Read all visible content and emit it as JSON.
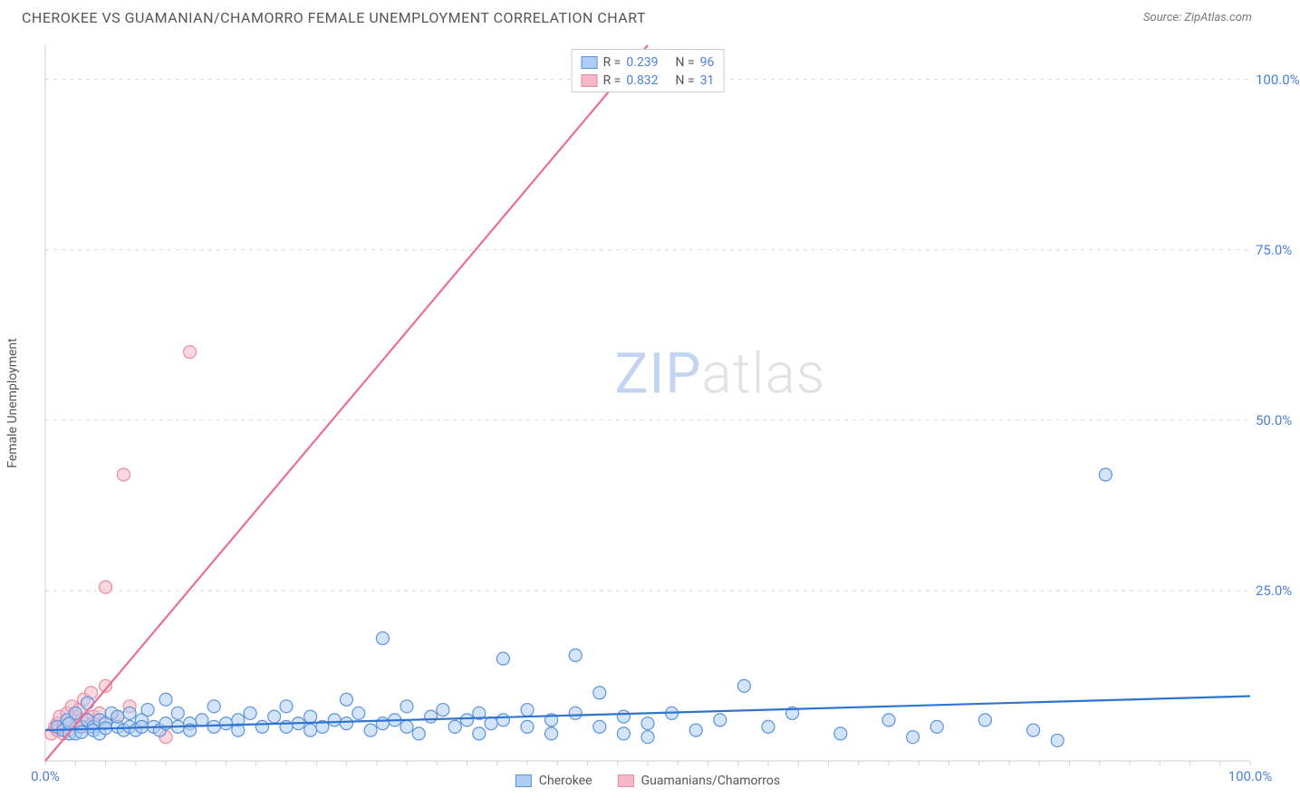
{
  "header": {
    "title": "CHEROKEE VS GUAMANIAN/CHAMORRO FEMALE UNEMPLOYMENT CORRELATION CHART",
    "source": "Source: ZipAtlas.com"
  },
  "watermark": {
    "zip": "ZIP",
    "atlas": "atlas"
  },
  "chart": {
    "type": "scatter",
    "ylabel": "Female Unemployment",
    "xlim": [
      0,
      100
    ],
    "ylim": [
      0,
      105
    ],
    "yticks": [
      25.0,
      50.0,
      75.0,
      100.0
    ],
    "ytick_labels": [
      "25.0%",
      "50.0%",
      "75.0%",
      "100.0%"
    ],
    "xtick_labels": {
      "min": "0.0%",
      "max": "100.0%"
    },
    "background_color": "#ffffff",
    "grid_color": "#d8d8d8",
    "axis_color": "#d0d0d0",
    "marker_radius": 7,
    "marker_stroke_width": 1.2,
    "trend_line_width": 2.2,
    "series": [
      {
        "name": "Cherokee",
        "fill": "#aecdf4",
        "stroke": "#5c93d8",
        "fill_opacity": 0.55,
        "trend_color": "#2f74d0",
        "trend": {
          "x1": 0,
          "y1": 4.5,
          "x2": 100,
          "y2": 9.5
        },
        "r_label": "R =",
        "r_value": "0.239",
        "n_label": "N =",
        "n_value": "96",
        "points": [
          [
            1,
            5
          ],
          [
            1.5,
            4.5
          ],
          [
            1.8,
            6
          ],
          [
            2,
            4
          ],
          [
            2,
            5.5
          ],
          [
            2.5,
            7
          ],
          [
            2.5,
            4
          ],
          [
            3,
            5
          ],
          [
            3,
            4.2
          ],
          [
            3.5,
            6
          ],
          [
            3.5,
            8.5
          ],
          [
            4,
            5
          ],
          [
            4,
            4.5
          ],
          [
            4.5,
            6
          ],
          [
            4.5,
            4
          ],
          [
            5,
            5.5
          ],
          [
            5,
            4.8
          ],
          [
            5.5,
            7
          ],
          [
            6,
            5
          ],
          [
            6,
            6.5
          ],
          [
            6.5,
            4.5
          ],
          [
            7,
            5
          ],
          [
            7,
            7
          ],
          [
            7.5,
            4.5
          ],
          [
            8,
            6
          ],
          [
            8,
            5
          ],
          [
            8.5,
            7.5
          ],
          [
            9,
            5
          ],
          [
            9.5,
            4.5
          ],
          [
            10,
            9
          ],
          [
            10,
            5.5
          ],
          [
            11,
            5
          ],
          [
            11,
            7
          ],
          [
            12,
            5.5
          ],
          [
            12,
            4.5
          ],
          [
            13,
            6
          ],
          [
            14,
            5
          ],
          [
            14,
            8
          ],
          [
            15,
            5.5
          ],
          [
            16,
            6
          ],
          [
            16,
            4.5
          ],
          [
            17,
            7
          ],
          [
            18,
            5
          ],
          [
            19,
            6.5
          ],
          [
            20,
            5
          ],
          [
            20,
            8
          ],
          [
            21,
            5.5
          ],
          [
            22,
            6.5
          ],
          [
            22,
            4.5
          ],
          [
            23,
            5
          ],
          [
            24,
            6
          ],
          [
            25,
            5.5
          ],
          [
            25,
            9
          ],
          [
            26,
            7
          ],
          [
            27,
            4.5
          ],
          [
            28,
            5.5
          ],
          [
            28,
            18
          ],
          [
            29,
            6
          ],
          [
            30,
            5
          ],
          [
            30,
            8
          ],
          [
            31,
            4
          ],
          [
            32,
            6.5
          ],
          [
            33,
            7.5
          ],
          [
            34,
            5
          ],
          [
            35,
            6
          ],
          [
            36,
            7
          ],
          [
            36,
            4
          ],
          [
            37,
            5.5
          ],
          [
            38,
            6
          ],
          [
            38,
            15
          ],
          [
            40,
            5
          ],
          [
            40,
            7.5
          ],
          [
            42,
            6
          ],
          [
            42,
            4
          ],
          [
            44,
            7
          ],
          [
            44,
            15.5
          ],
          [
            46,
            5
          ],
          [
            46,
            10
          ],
          [
            48,
            6.5
          ],
          [
            48,
            4
          ],
          [
            50,
            5.5
          ],
          [
            50,
            3.5
          ],
          [
            52,
            7
          ],
          [
            54,
            4.5
          ],
          [
            56,
            6
          ],
          [
            58,
            11
          ],
          [
            60,
            5
          ],
          [
            62,
            7
          ],
          [
            66,
            4
          ],
          [
            70,
            6
          ],
          [
            72,
            3.5
          ],
          [
            74,
            5
          ],
          [
            78,
            6
          ],
          [
            82,
            4.5
          ],
          [
            84,
            3
          ],
          [
            88,
            42
          ]
        ]
      },
      {
        "name": "Guamanians/Chamorros",
        "fill": "#f6b8c6",
        "stroke": "#e98aa2",
        "fill_opacity": 0.55,
        "trend_color": "#e86f93",
        "trend": {
          "x1": 0,
          "y1": 0,
          "x2": 50,
          "y2": 105
        },
        "r_label": "R =",
        "r_value": "0.832",
        "n_label": "N =",
        "n_value": "31",
        "points": [
          [
            0.5,
            4
          ],
          [
            0.8,
            5
          ],
          [
            1,
            5.5
          ],
          [
            1,
            4.5
          ],
          [
            1.2,
            6.5
          ],
          [
            1.5,
            5
          ],
          [
            1.5,
            4
          ],
          [
            1.8,
            7
          ],
          [
            2,
            5.5
          ],
          [
            2,
            4.5
          ],
          [
            2.2,
            8
          ],
          [
            2.5,
            5
          ],
          [
            2.5,
            6.5
          ],
          [
            2.8,
            7.5
          ],
          [
            3,
            6
          ],
          [
            3,
            5
          ],
          [
            3.2,
            9
          ],
          [
            3.5,
            6
          ],
          [
            3.5,
            5
          ],
          [
            3.8,
            10
          ],
          [
            4,
            6.5
          ],
          [
            4,
            5.5
          ],
          [
            4.5,
            7
          ],
          [
            5,
            11
          ],
          [
            5,
            5.5
          ],
          [
            6,
            6.5
          ],
          [
            7,
            8
          ],
          [
            10,
            3.5
          ],
          [
            5,
            25.5
          ],
          [
            6.5,
            42
          ],
          [
            12,
            60
          ]
        ]
      }
    ]
  },
  "legend_bottom": [
    {
      "label": "Cherokee",
      "swatch_fill": "#aecdf4",
      "swatch_stroke": "#5c93d8"
    },
    {
      "label": "Guamanians/Chamorros",
      "swatch_fill": "#f6b8c6",
      "swatch_stroke": "#e98aa2"
    }
  ]
}
